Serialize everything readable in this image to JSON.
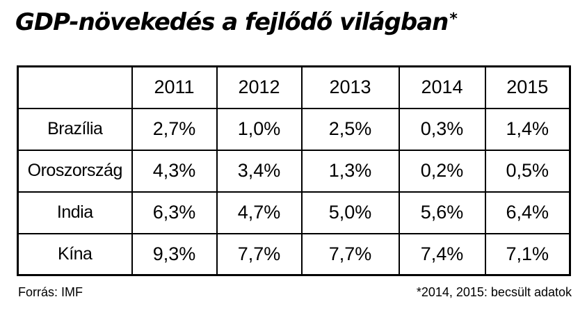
{
  "chart_data": {
    "type": "table",
    "title": "GDP-növekedés a fejlődő világban",
    "title_marker": "*",
    "columns": [
      "2011",
      "2012",
      "2013",
      "2014",
      "2015"
    ],
    "rows": [
      {
        "label": "Brazília",
        "values": [
          "2,7%",
          "1,0%",
          "2,5%",
          "0,3%",
          "1,4%"
        ]
      },
      {
        "label": "Oroszország",
        "values": [
          "4,3%",
          "3,4%",
          "1,3%",
          "0,2%",
          "0,5%"
        ]
      },
      {
        "label": "India",
        "values": [
          "6,3%",
          "4,7%",
          "5,0%",
          "5,6%",
          "6,4%"
        ]
      },
      {
        "label": "Kína",
        "values": [
          "9,3%",
          "7,7%",
          "7,7%",
          "7,4%",
          "7,1%"
        ]
      }
    ],
    "source": "Forrás: IMF",
    "footnote": "*2014, 2015: becsült adatok"
  }
}
